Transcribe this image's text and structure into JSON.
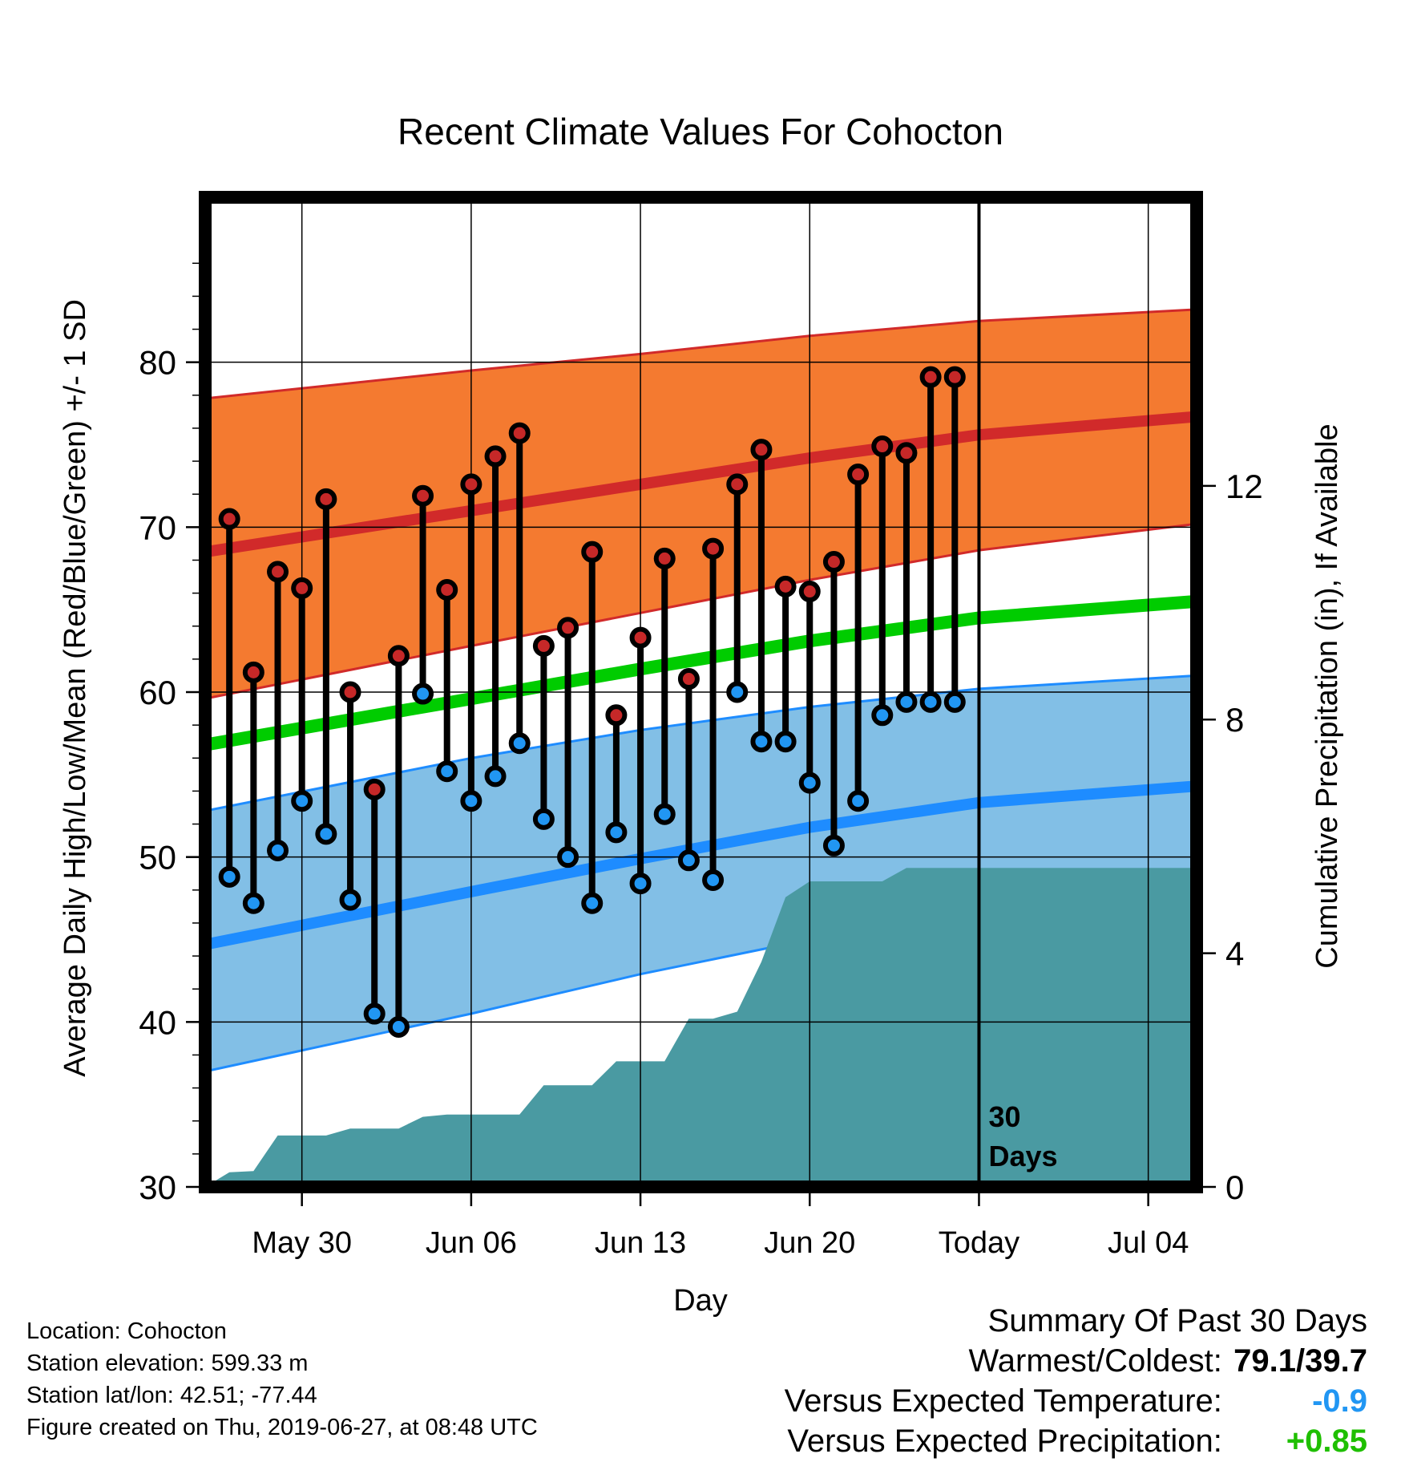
{
  "chart_data": {
    "type": "line",
    "title": "Recent Climate Values For Cohocton",
    "xlabel": "Day",
    "ylabel_left": "Average Daily High/Low/Mean (Red/Blue/Green) +/- 1 SD",
    "ylabel_right": "Cumulative Precipitation (in), If Available",
    "x_domain": [
      "2019-05-26",
      "2019-07-06"
    ],
    "x_ticks": [
      {
        "date": "2019-05-30",
        "label": "May 30"
      },
      {
        "date": "2019-06-06",
        "label": "Jun 06"
      },
      {
        "date": "2019-06-13",
        "label": "Jun 13"
      },
      {
        "date": "2019-06-20",
        "label": "Jun 20"
      },
      {
        "date": "2019-06-27",
        "label": "Today"
      },
      {
        "date": "2019-07-04",
        "label": "Jul 04"
      }
    ],
    "ylim_left": [
      30,
      90
    ],
    "y_ticks_left": [
      30,
      40,
      50,
      60,
      70,
      80
    ],
    "ylim_right": [
      0,
      16.94
    ],
    "y_ticks_right": [
      0,
      4,
      8,
      12
    ],
    "grid": true,
    "today": {
      "date": "2019-06-27",
      "label_line1": "30",
      "label_line2": "Days"
    },
    "colors": {
      "high_band": "#f47a30",
      "high_line": "#d12a2a",
      "low_band": "#82bfe6",
      "low_line": "#1e8cff",
      "mean_line": "#00cc00",
      "precip": "#4a9aa2",
      "high_dot": "#c62828",
      "low_dot": "#2196f3"
    },
    "normals_high": {
      "x": [
        "2019-05-26",
        "2019-06-06",
        "2019-06-13",
        "2019-06-20",
        "2019-06-27",
        "2019-07-06"
      ],
      "mean": [
        68.5,
        71.0,
        72.6,
        74.2,
        75.6,
        76.7
      ],
      "upper": [
        77.8,
        79.5,
        80.5,
        81.6,
        82.5,
        83.2
      ],
      "lower": [
        59.6,
        62.8,
        64.8,
        66.8,
        68.6,
        70.2
      ]
    },
    "normals_low": {
      "x": [
        "2019-05-26",
        "2019-06-06",
        "2019-06-13",
        "2019-06-20",
        "2019-06-27",
        "2019-07-06"
      ],
      "mean": [
        44.7,
        47.9,
        49.9,
        51.8,
        53.3,
        54.3
      ],
      "upper": [
        52.8,
        56.0,
        57.7,
        59.1,
        60.2,
        61.0
      ],
      "lower": [
        37.0,
        40.5,
        42.9,
        45.0,
        46.7,
        48.0
      ]
    },
    "normals_mean": {
      "x": [
        "2019-05-26",
        "2019-06-06",
        "2019-06-13",
        "2019-06-20",
        "2019-06-27",
        "2019-07-06"
      ],
      "values": [
        56.8,
        59.6,
        61.4,
        63.1,
        64.5,
        65.5
      ]
    },
    "observations": {
      "dates": [
        "2019-05-27",
        "2019-05-28",
        "2019-05-29",
        "2019-05-30",
        "2019-05-31",
        "2019-06-01",
        "2019-06-02",
        "2019-06-03",
        "2019-06-04",
        "2019-06-05",
        "2019-06-06",
        "2019-06-07",
        "2019-06-08",
        "2019-06-09",
        "2019-06-10",
        "2019-06-11",
        "2019-06-12",
        "2019-06-13",
        "2019-06-14",
        "2019-06-15",
        "2019-06-16",
        "2019-06-17",
        "2019-06-18",
        "2019-06-19",
        "2019-06-20",
        "2019-06-21",
        "2019-06-22",
        "2019-06-23",
        "2019-06-24",
        "2019-06-25",
        "2019-06-26"
      ],
      "high": [
        70.5,
        61.2,
        67.3,
        66.3,
        71.7,
        60.0,
        54.1,
        62.2,
        71.9,
        66.2,
        72.6,
        74.3,
        75.7,
        62.8,
        63.9,
        68.5,
        58.6,
        63.3,
        68.1,
        60.8,
        68.7,
        72.6,
        74.7,
        66.4,
        66.1,
        67.9,
        73.2,
        74.9,
        74.5,
        79.1,
        79.1
      ],
      "low": [
        48.8,
        47.2,
        50.4,
        53.4,
        51.4,
        47.4,
        40.5,
        39.7,
        59.9,
        55.2,
        53.4,
        54.9,
        56.9,
        52.3,
        50.0,
        47.2,
        51.5,
        48.4,
        52.6,
        49.8,
        48.6,
        60.0,
        57.0,
        57.0,
        54.5,
        50.7,
        53.4,
        58.6,
        59.4,
        59.4,
        59.4
      ]
    },
    "precipitation_cumulative": {
      "x": [
        "2019-05-26",
        "2019-05-27",
        "2019-05-28",
        "2019-05-29",
        "2019-05-30",
        "2019-05-31",
        "2019-06-01",
        "2019-06-02",
        "2019-06-03",
        "2019-06-04",
        "2019-06-05",
        "2019-06-06",
        "2019-06-07",
        "2019-06-08",
        "2019-06-09",
        "2019-06-10",
        "2019-06-11",
        "2019-06-12",
        "2019-06-13",
        "2019-06-14",
        "2019-06-15",
        "2019-06-16",
        "2019-06-17",
        "2019-06-18",
        "2019-06-19",
        "2019-06-20",
        "2019-06-21",
        "2019-06-22",
        "2019-06-23",
        "2019-06-24",
        "2019-06-25",
        "2019-06-26",
        "2019-06-27",
        "2019-07-06"
      ],
      "values": [
        0.0,
        0.25,
        0.27,
        0.88,
        0.88,
        0.88,
        1.0,
        1.0,
        1.0,
        1.2,
        1.24,
        1.24,
        1.24,
        1.24,
        1.74,
        1.74,
        1.74,
        2.15,
        2.15,
        2.15,
        2.88,
        2.88,
        3.0,
        3.85,
        4.96,
        5.23,
        5.23,
        5.23,
        5.23,
        5.46,
        5.46,
        5.46,
        5.46,
        5.46
      ]
    }
  },
  "info": {
    "location": "Location: Cohocton",
    "elevation": "Station elevation: 599.33 m",
    "latlon": "Station lat/lon: 42.51; -77.44",
    "created": "Figure created on Thu, 2019-06-27, at 08:48 UTC"
  },
  "summary": {
    "title": "Summary Of Past 30 Days",
    "warmest_label": "Warmest/Coldest:",
    "warmest": "79.1",
    "slash": "/",
    "coldest": "39.7",
    "temp_label": "Versus Expected Temperature:",
    "temp_value": "-0.9",
    "temp_color": "#2196f3",
    "precip_label": "Versus Expected Precipitation:",
    "precip_value": "+0.85",
    "precip_color": "#1fbf00"
  }
}
